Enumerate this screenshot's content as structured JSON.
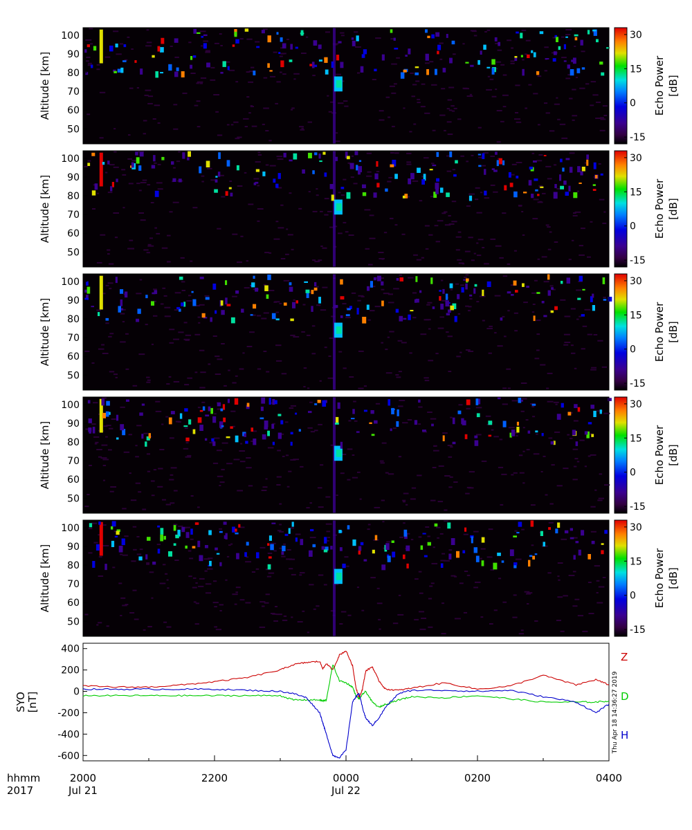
{
  "chart_data": [
    {
      "type": "heatmap",
      "panel": 1,
      "ylabel": "Altitude [km]",
      "yticks": [
        50,
        60,
        70,
        80,
        90,
        100
      ],
      "ylim": [
        42,
        104
      ],
      "xlim_hours": [
        -4,
        4
      ],
      "colorbar": {
        "label": "Echo Power",
        "units": "[dB]",
        "ticks": [
          "30",
          "15",
          "0",
          "-15"
        ],
        "range": [
          -18,
          33
        ]
      }
    },
    {
      "type": "heatmap",
      "panel": 2,
      "ylabel": "Altitude [km]",
      "yticks": [
        50,
        60,
        70,
        80,
        90,
        100
      ],
      "ylim": [
        42,
        104
      ],
      "xlim_hours": [
        -4,
        4
      ],
      "colorbar": {
        "label": "Echo Power",
        "units": "[dB]",
        "ticks": [
          "30",
          "15",
          "0",
          "-15"
        ],
        "range": [
          -18,
          33
        ]
      }
    },
    {
      "type": "heatmap",
      "panel": 3,
      "ylabel": "Altitude [km]",
      "yticks": [
        50,
        60,
        70,
        80,
        90,
        100
      ],
      "ylim": [
        42,
        104
      ],
      "xlim_hours": [
        -4,
        4
      ],
      "colorbar": {
        "label": "Echo Power",
        "units": "[dB]",
        "ticks": [
          "30",
          "15",
          "0",
          "-15"
        ],
        "range": [
          -18,
          33
        ]
      }
    },
    {
      "type": "heatmap",
      "panel": 4,
      "ylabel": "Altitude [km]",
      "yticks": [
        50,
        60,
        70,
        80,
        90,
        100
      ],
      "ylim": [
        42,
        104
      ],
      "xlim_hours": [
        -4,
        4
      ],
      "colorbar": {
        "label": "Echo Power",
        "units": "[dB]",
        "ticks": [
          "30",
          "15",
          "0",
          "-15"
        ],
        "range": [
          -18,
          33
        ]
      }
    },
    {
      "type": "heatmap",
      "panel": 5,
      "ylabel": "Altitude [km]",
      "yticks": [
        50,
        60,
        70,
        80,
        90,
        100
      ],
      "ylim": [
        42,
        104
      ],
      "xlim_hours": [
        -4,
        4
      ],
      "colorbar": {
        "label": "Echo Power",
        "units": "[dB]",
        "ticks": [
          "30",
          "15",
          "0",
          "-15"
        ],
        "range": [
          -18,
          33
        ]
      }
    },
    {
      "type": "line",
      "ylabel": "SYO",
      "yunits": "[nT]",
      "ylim": [
        -650,
        450
      ],
      "yticks": [
        400,
        200,
        0,
        -200,
        -400,
        -600
      ],
      "timestamp": "Thu Apr 18 14:36:27 2019",
      "x_hours": [
        -4.0,
        -3.5,
        -3.0,
        -2.5,
        -2.0,
        -1.5,
        -1.0,
        -0.8,
        -0.6,
        -0.4,
        -0.35,
        -0.3,
        -0.2,
        -0.1,
        0.0,
        0.1,
        0.15,
        0.2,
        0.25,
        0.3,
        0.4,
        0.5,
        0.6,
        0.8,
        1.0,
        1.5,
        2.0,
        2.5,
        3.0,
        3.5,
        3.8,
        4.0
      ],
      "series": [
        {
          "name": "Z",
          "color": "#cc0000",
          "values": [
            50,
            40,
            40,
            60,
            90,
            130,
            200,
            250,
            270,
            280,
            210,
            260,
            200,
            340,
            380,
            240,
            40,
            -60,
            20,
            190,
            230,
            100,
            20,
            10,
            30,
            80,
            20,
            50,
            150,
            60,
            110,
            60
          ]
        },
        {
          "name": "D",
          "color": "#00cc00",
          "values": [
            -40,
            -40,
            -40,
            -40,
            -40,
            -40,
            -40,
            -80,
            -80,
            -80,
            -90,
            -80,
            250,
            100,
            80,
            40,
            -40,
            -70,
            -30,
            0,
            -100,
            -150,
            -120,
            -80,
            -50,
            -60,
            -40,
            -70,
            -100,
            -100,
            -100,
            -90
          ]
        },
        {
          "name": "H",
          "color": "#0000cc",
          "values": [
            20,
            20,
            20,
            20,
            20,
            10,
            0,
            -20,
            -60,
            -200,
            -300,
            -400,
            -600,
            -620,
            -550,
            -100,
            -50,
            -20,
            -150,
            -250,
            -320,
            -250,
            -150,
            -20,
            10,
            10,
            0,
            10,
            -50,
            -100,
            -200,
            -120
          ]
        }
      ]
    }
  ],
  "axis": {
    "row1_title": "hhmm",
    "row2_title": "2017",
    "xticks": [
      "2000",
      "2200",
      "0000",
      "0200",
      "0400"
    ],
    "dates": [
      "Jul 21",
      "Jul 22"
    ]
  }
}
